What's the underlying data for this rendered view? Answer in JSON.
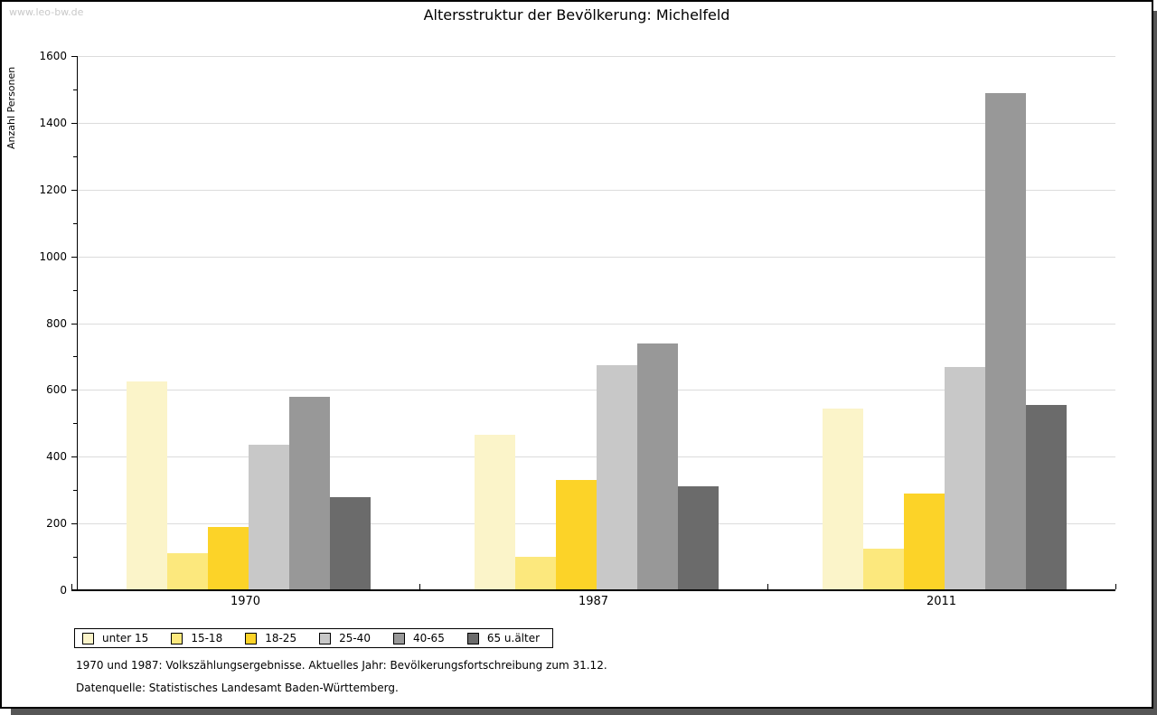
{
  "watermark": "www.leo-bw.de",
  "header": {
    "title": "Altersstruktur der Bevölkerung: Michelfeld"
  },
  "footnotes": {
    "line1": "1970 und 1987: Volkszählungsergebnisse. Aktuelles Jahr: Bevölkerungsfortschreibung zum 31.12.",
    "line2": "Datenquelle: Statistisches Landesamt Baden-Württemberg."
  },
  "colors": {
    "grid": "#dcdcdc",
    "axis": "#000000",
    "watermark": "#c9c9c9",
    "frame_shadow": "#565656"
  },
  "chart_data": {
    "type": "bar",
    "title": "Altersstruktur der Bevölkerung: Michelfeld",
    "xlabel": "",
    "ylabel": "Anzahl Personen",
    "categories": [
      "1970",
      "1987",
      "2011"
    ],
    "series": [
      {
        "name": "unter 15",
        "color": "#fbf4c9",
        "values": [
          625,
          465,
          545
        ]
      },
      {
        "name": "15-18",
        "color": "#fce87d",
        "values": [
          110,
          100,
          125
        ]
      },
      {
        "name": "18-25",
        "color": "#fcd328",
        "values": [
          190,
          330,
          290
        ]
      },
      {
        "name": "25-40",
        "color": "#c8c8c8",
        "values": [
          435,
          675,
          670
        ]
      },
      {
        "name": "40-65",
        "color": "#989898",
        "values": [
          580,
          740,
          1490
        ]
      },
      {
        "name": "65 u.älter",
        "color": "#6b6b6b",
        "values": [
          280,
          310,
          555
        ]
      }
    ],
    "ylim": [
      0,
      1600
    ],
    "ytick_step": 200,
    "minor_tick_step": 100,
    "grid": true,
    "legend_position": "bottom-left"
  }
}
